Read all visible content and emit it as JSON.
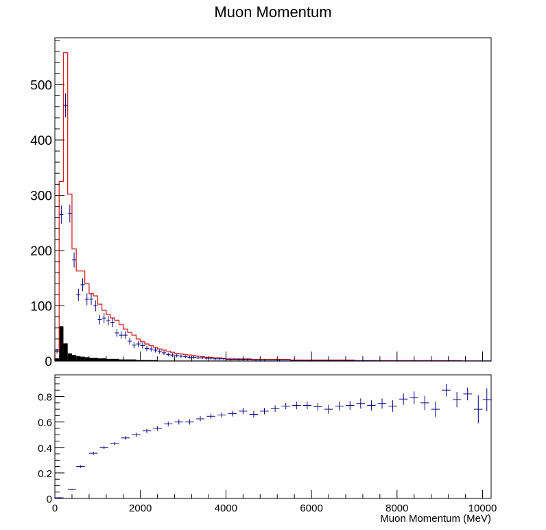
{
  "chart_data": [
    {
      "type": "histogram",
      "title": "Muon Momentum",
      "xlabel": "",
      "ylabel": "",
      "xlim": [
        0,
        10200
      ],
      "ylim": [
        0,
        585
      ],
      "y_ticks": [
        0,
        100,
        200,
        300,
        400,
        500
      ],
      "grid": false,
      "legend": "none",
      "bin_edges": [
        0,
        100,
        200,
        300,
        400,
        500,
        600,
        700,
        800,
        900,
        1000,
        1100,
        1200,
        1300,
        1400,
        1500,
        1600,
        1700,
        1800,
        1900,
        2000,
        2100,
        2200,
        2300,
        2400,
        2500,
        2600,
        2700,
        2800,
        2900,
        3000,
        3100,
        3200,
        3300,
        3400,
        3500,
        3600,
        3700,
        3800,
        3900,
        4000,
        4200,
        4400,
        4600,
        4800,
        5000,
        5500,
        6000,
        6500,
        7000,
        7500,
        8000,
        8500,
        9000,
        9500,
        10200
      ],
      "series": [
        {
          "style": "red-step-line",
          "color": "#d62020",
          "values": [
            20,
            325,
            558,
            302,
            203,
            163,
            163,
            140,
            122,
            118,
            103,
            92,
            84,
            78,
            74,
            66,
            58,
            52,
            47,
            40,
            35,
            31,
            28,
            25,
            22,
            20,
            18,
            16,
            14,
            13,
            12,
            11,
            10,
            9,
            8,
            7,
            7,
            6,
            6,
            5,
            5,
            4,
            4,
            3,
            3,
            3,
            2,
            2,
            2,
            1,
            1,
            1,
            1,
            1,
            0.5
          ]
        },
        {
          "style": "black-filled",
          "color": "#000000",
          "values": [
            5,
            63,
            32,
            14,
            11,
            9,
            8,
            7,
            6,
            6,
            5,
            5,
            4,
            4,
            4,
            3,
            3,
            3,
            3,
            2,
            2,
            2,
            2,
            2,
            1,
            1,
            1,
            1,
            1,
            1,
            1,
            1,
            1,
            1,
            1,
            1,
            1,
            1,
            1,
            1,
            1,
            1,
            1,
            0,
            0,
            0,
            0,
            0,
            0,
            0,
            0,
            0,
            0,
            0,
            0
          ]
        },
        {
          "style": "navy-error-crosses",
          "color": "#000080",
          "values": [
            18,
            265,
            463,
            267,
            183,
            120,
            138,
            112,
            112,
            100,
            75,
            78,
            73,
            70,
            51,
            47,
            47,
            36,
            29,
            31,
            28,
            23,
            22,
            20,
            17,
            15,
            12,
            11,
            10,
            9,
            8,
            7,
            7,
            6,
            6,
            5,
            5,
            4,
            4,
            4,
            3,
            3,
            3,
            2,
            2,
            2,
            1,
            1,
            1,
            1,
            0.5,
            0.5,
            0.5,
            0.5,
            0.5
          ]
        }
      ]
    },
    {
      "type": "scatter",
      "title": "",
      "xlabel": "Muon Momentum (MeV)",
      "ylabel": "",
      "xlim": [
        0,
        10200
      ],
      "ylim": [
        0,
        0.97
      ],
      "x_ticks": [
        0,
        2000,
        4000,
        6000,
        8000,
        10000
      ],
      "y_ticks": [
        0,
        0.2,
        0.4,
        0.6,
        0.8
      ],
      "grid": false,
      "legend": "none",
      "series": [
        {
          "style": "navy-error-crosses",
          "color": "#000080",
          "x": [
            100,
            400,
            600,
            900,
            1150,
            1400,
            1650,
            1900,
            2150,
            2400,
            2650,
            2900,
            3150,
            3400,
            3650,
            3900,
            4150,
            4400,
            4650,
            4900,
            5150,
            5400,
            5650,
            5900,
            6150,
            6400,
            6650,
            6900,
            7150,
            7400,
            7650,
            7900,
            8150,
            8400,
            8650,
            8900,
            9150,
            9400,
            9650,
            9900,
            10100
          ],
          "y": [
            0.005,
            0.07,
            0.25,
            0.355,
            0.4,
            0.43,
            0.475,
            0.5,
            0.53,
            0.55,
            0.585,
            0.6,
            0.6,
            0.625,
            0.645,
            0.655,
            0.665,
            0.685,
            0.66,
            0.685,
            0.705,
            0.725,
            0.73,
            0.73,
            0.72,
            0.7,
            0.725,
            0.73,
            0.745,
            0.73,
            0.745,
            0.725,
            0.78,
            0.79,
            0.75,
            0.7,
            0.85,
            0.775,
            0.82,
            0.7,
            0.775
          ],
          "xerr": [
            100,
            100,
            100,
            100,
            100,
            100,
            100,
            100,
            100,
            100,
            100,
            100,
            100,
            100,
            100,
            100,
            100,
            100,
            100,
            100,
            100,
            100,
            100,
            100,
            100,
            100,
            100,
            100,
            100,
            100,
            100,
            100,
            100,
            100,
            100,
            100,
            100,
            100,
            100,
            100,
            100
          ],
          "yerr": [
            0.005,
            0.005,
            0.01,
            0.012,
            0.012,
            0.013,
            0.015,
            0.015,
            0.017,
            0.018,
            0.018,
            0.02,
            0.02,
            0.02,
            0.02,
            0.02,
            0.022,
            0.025,
            0.025,
            0.025,
            0.025,
            0.025,
            0.03,
            0.03,
            0.03,
            0.035,
            0.035,
            0.035,
            0.04,
            0.04,
            0.04,
            0.045,
            0.045,
            0.05,
            0.055,
            0.06,
            0.05,
            0.06,
            0.05,
            0.11,
            0.09
          ]
        }
      ]
    }
  ]
}
